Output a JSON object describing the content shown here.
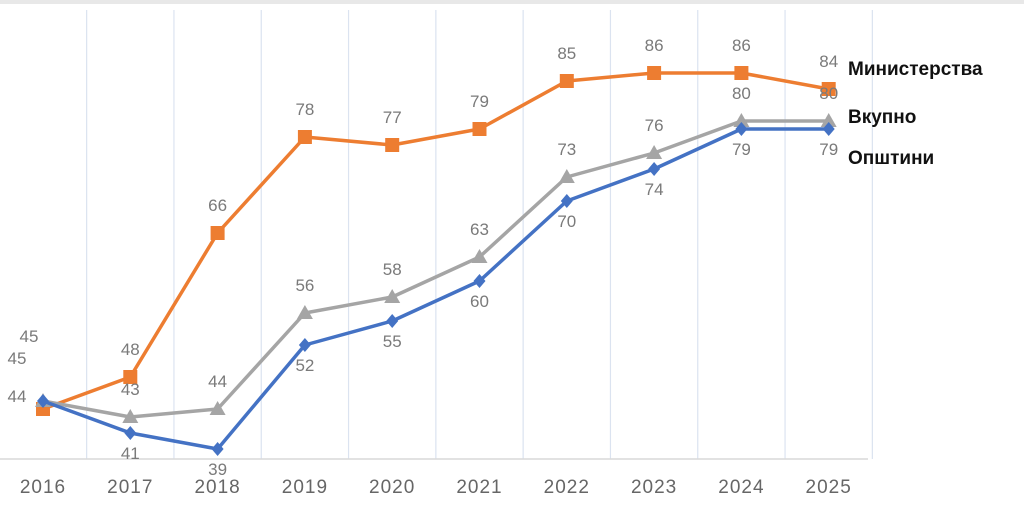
{
  "chart_data": {
    "type": "line",
    "title": "",
    "xlabel": "",
    "ylabel": "",
    "x": [
      "2016",
      "2017",
      "2018",
      "2019",
      "2020",
      "2021",
      "2022",
      "2023",
      "2024",
      "2025"
    ],
    "ylim": [
      30,
      95
    ],
    "grid": "vertical",
    "legend_placement": "right, at line ends",
    "series": [
      {
        "name": "Министерства",
        "color": "#ED7D31",
        "marker": "square",
        "values": [
          44,
          48,
          66,
          78,
          77,
          79,
          85,
          86,
          86,
          84
        ],
        "labels": [
          "44",
          "48",
          "66",
          "78",
          "77",
          "79",
          "85",
          "86",
          "86",
          "84"
        ]
      },
      {
        "name": "Вкупно",
        "color": "#A5A5A5",
        "marker": "triangle",
        "values": [
          45,
          43,
          44,
          56,
          58,
          63,
          73,
          76,
          80,
          80
        ],
        "labels": [
          "45",
          "43",
          "44",
          "56",
          "58",
          "63",
          "73",
          "76",
          "80",
          "80"
        ]
      },
      {
        "name": "Општини",
        "color": "#4472C4",
        "marker": "diamond",
        "values": [
          45,
          41,
          39,
          52,
          55,
          60,
          70,
          74,
          79,
          79
        ],
        "labels": [
          "45",
          "41",
          "39",
          "52",
          "55",
          "60",
          "70",
          "74",
          "79",
          "79"
        ]
      }
    ]
  }
}
